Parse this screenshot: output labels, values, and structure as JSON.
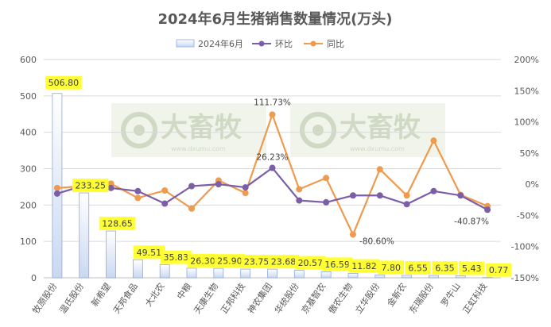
{
  "colors": {
    "bar_fill_top": "#ffffff",
    "bar_fill_bottom": "#c9d8f2",
    "bar_stroke": "#8eaadb",
    "mom": "#7b5ea7",
    "yoy": "#ee9a4f",
    "label_bg": "#ffff33",
    "grid": "#d9d9d9",
    "watermark_bg": "#f1f4ea"
  },
  "watermark": {
    "text": "大畜牧",
    "sub": "www.dxumu.com"
  },
  "chart_data": {
    "type": "bar",
    "title": "2024年6月生猪销售数量情况(万头)",
    "categories": [
      "牧原股份",
      "温氏股份",
      "新希望",
      "天邦食品",
      "大北农",
      "中粮",
      "天康生物",
      "正邦科技",
      "神农集团",
      "华统股份",
      "京基智农",
      "傲农生物",
      "立华股份",
      "金新农",
      "东瑞股份",
      "罗牛山",
      "正虹科技"
    ],
    "y_left": {
      "min": 0,
      "max": 600,
      "ticks": [
        0,
        100,
        200,
        300,
        400,
        500,
        600
      ]
    },
    "y_right": {
      "min": -150,
      "max": 200,
      "ticks": [
        -150,
        -100,
        -50,
        0,
        50,
        100,
        150,
        200
      ],
      "tick_labels": [
        "-150%",
        "-100%",
        "-50%",
        "0%",
        "50%",
        "100%",
        "150%",
        "200%"
      ]
    },
    "legend": {
      "position": "top",
      "items": [
        "2024年6月",
        "环比",
        "同比"
      ]
    },
    "series": [
      {
        "name": "2024年6月",
        "type": "bar",
        "axis": "left",
        "values": [
          506.8,
          233.25,
          128.65,
          49.51,
          35.83,
          26.3,
          25.9,
          23.75,
          23.68,
          20.57,
          16.59,
          11.82,
          7.8,
          6.55,
          6.35,
          5.43,
          0.77
        ],
        "labels": [
          "506.80",
          "233.25",
          "128.65",
          "49.51",
          "35.83",
          "26.30",
          "25.90",
          "23.75",
          "23.68",
          "20.57",
          "16.59",
          "11.82",
          "7.80",
          "6.55",
          "6.35",
          "5.43",
          "0.77"
        ]
      },
      {
        "name": "环比",
        "type": "line",
        "axis": "right",
        "values": [
          -15,
          -2,
          -6,
          -11,
          -31,
          -3,
          0,
          -5,
          26.23,
          -26,
          -29,
          -18,
          -18,
          -32,
          -11,
          -18,
          -40.87
        ]
      },
      {
        "name": "同比",
        "type": "line",
        "axis": "right",
        "values": [
          -6,
          -3,
          1,
          -22,
          -10,
          -39,
          6,
          -14,
          111.73,
          -8,
          10,
          -80.6,
          24,
          -18,
          70,
          -17,
          -35
        ]
      }
    ],
    "annotations": [
      {
        "series": "同比",
        "index": 8,
        "text": "111.73%"
      },
      {
        "series": "环比",
        "index": 8,
        "text": "26.23%"
      },
      {
        "series": "同比",
        "index": 11,
        "text": "-80.60%"
      },
      {
        "series": "环比",
        "index": 16,
        "text": "-40.87%"
      }
    ]
  }
}
